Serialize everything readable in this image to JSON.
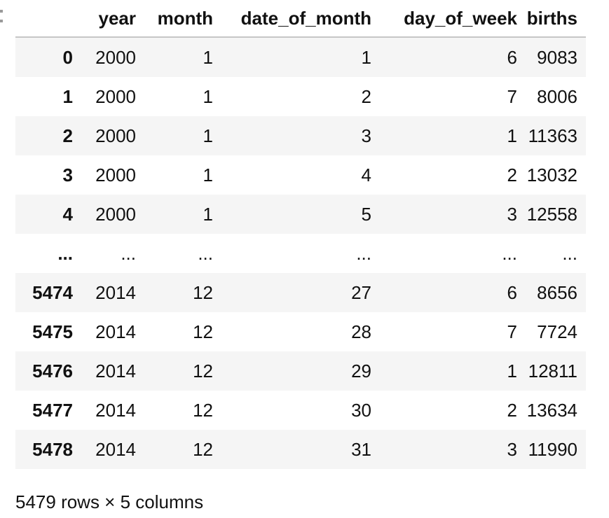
{
  "table": {
    "index_header": "",
    "columns": [
      "year",
      "month",
      "date_of_month",
      "day_of_week",
      "births"
    ],
    "rows": [
      {
        "index": "0",
        "values": [
          "2000",
          "1",
          "1",
          "6",
          "9083"
        ]
      },
      {
        "index": "1",
        "values": [
          "2000",
          "1",
          "2",
          "7",
          "8006"
        ]
      },
      {
        "index": "2",
        "values": [
          "2000",
          "1",
          "3",
          "1",
          "11363"
        ]
      },
      {
        "index": "3",
        "values": [
          "2000",
          "1",
          "4",
          "2",
          "13032"
        ]
      },
      {
        "index": "4",
        "values": [
          "2000",
          "1",
          "5",
          "3",
          "12558"
        ]
      },
      {
        "index": "...",
        "values": [
          "...",
          "...",
          "...",
          "...",
          "..."
        ]
      },
      {
        "index": "5474",
        "values": [
          "2014",
          "12",
          "27",
          "6",
          "8656"
        ]
      },
      {
        "index": "5475",
        "values": [
          "2014",
          "12",
          "28",
          "7",
          "7724"
        ]
      },
      {
        "index": "5476",
        "values": [
          "2014",
          "12",
          "29",
          "1",
          "12811"
        ]
      },
      {
        "index": "5477",
        "values": [
          "2014",
          "12",
          "30",
          "2",
          "13634"
        ]
      },
      {
        "index": "5478",
        "values": [
          "2014",
          "12",
          "31",
          "3",
          "11990"
        ]
      }
    ]
  },
  "summary": "5479 rows × 5 columns"
}
